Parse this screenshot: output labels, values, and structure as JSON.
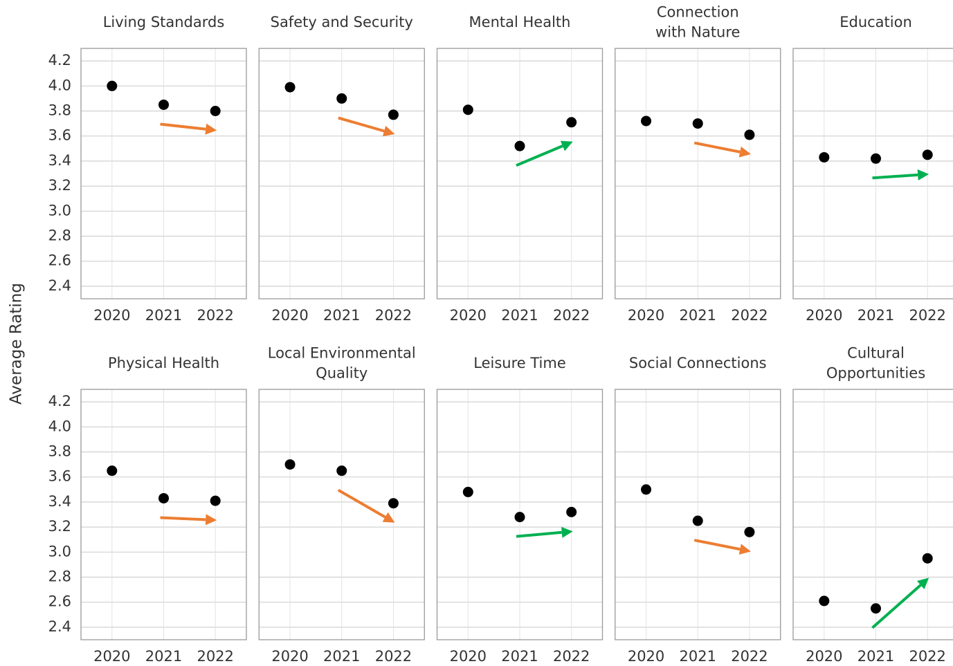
{
  "ylabel": "Average Rating",
  "chart_data": [
    {
      "type": "scatter",
      "title": [
        "Living Standards"
      ],
      "x": [
        2020,
        2021,
        2022
      ],
      "values": [
        4.0,
        3.85,
        3.8
      ],
      "color": "#000000",
      "arrow_color": "#ed7d31",
      "xlim": [
        2019.4,
        2022.6
      ],
      "xticks": [
        2020,
        2021,
        2022
      ],
      "ylim": [
        2.3,
        4.3
      ],
      "yticks": [
        {
          "value": 2.4,
          "label": "2.4"
        },
        {
          "value": 2.6,
          "label": "2.6"
        },
        {
          "value": 2.8,
          "label": "2.8"
        },
        {
          "value": 3.0,
          "label": "3.0"
        },
        {
          "value": 3.2,
          "label": "3.2"
        },
        {
          "value": 3.4,
          "label": "3.4"
        },
        {
          "value": 3.6,
          "label": "3.6"
        },
        {
          "value": 3.8,
          "label": "3.8"
        },
        {
          "value": 4.0,
          "label": "4.0"
        },
        {
          "value": 4.2,
          "label": "4.2"
        }
      ],
      "grid": true
    },
    {
      "type": "scatter",
      "title": [
        "Safety and Security"
      ],
      "x": [
        2020,
        2021,
        2022
      ],
      "values": [
        3.99,
        3.9,
        3.77
      ],
      "color": "#000000",
      "arrow_color": "#ed7d31",
      "xlim": [
        2019.4,
        2022.6
      ],
      "xticks": [
        2020,
        2021,
        2022
      ],
      "ylim": [
        2.3,
        4.3
      ],
      "yticks": [
        2.4,
        2.6,
        2.8,
        3.2,
        3.4,
        3.6,
        3.8,
        4.2
      ],
      "grid": true
    },
    {
      "type": "scatter",
      "title": [
        "Mental Health"
      ],
      "x": [
        2020,
        2021,
        2022
      ],
      "values": [
        3.81,
        3.52,
        3.71
      ],
      "color": "#000000",
      "arrow_color": "#00b050",
      "xlim": [
        2019.4,
        2022.6
      ],
      "xticks": [
        2020,
        2021,
        2022
      ],
      "ylim": [
        2.3,
        4.3
      ],
      "yticks": [
        2.4,
        2.6,
        2.8,
        3.2,
        3.4,
        3.6,
        3.8,
        4.2
      ],
      "grid": true
    },
    {
      "type": "scatter",
      "title": [
        "Connection",
        "with Nature"
      ],
      "x": [
        2020,
        2021,
        2022
      ],
      "values": [
        3.72,
        3.7,
        3.61
      ],
      "color": "#000000",
      "arrow_color": "#ed7d31",
      "xlim": [
        2019.4,
        2022.6
      ],
      "xticks": [
        2020,
        2021,
        2022
      ],
      "ylim": [
        2.3,
        4.3
      ],
      "yticks": [
        2.4,
        2.6,
        2.8,
        3.2,
        3.4,
        3.6,
        3.8,
        4.2
      ],
      "grid": true
    },
    {
      "type": "scatter",
      "title": [
        "Education"
      ],
      "x": [
        2020,
        2021,
        2022
      ],
      "values": [
        3.43,
        3.42,
        3.45
      ],
      "color": "#000000",
      "arrow_color": "#00b050",
      "xlim": [
        2019.4,
        2022.6
      ],
      "xticks": [
        2020,
        2021,
        2022
      ],
      "ylim": [
        2.3,
        4.3
      ],
      "yticks": [
        2.4,
        2.6,
        2.8,
        3.2,
        3.4,
        3.6,
        3.8,
        4.2
      ],
      "grid": true
    },
    {
      "type": "scatter",
      "title": [
        "Physical Health"
      ],
      "x": [
        2020,
        2021,
        2022
      ],
      "values": [
        3.65,
        3.43,
        3.41
      ],
      "color": "#000000",
      "arrow_color": "#ed7d31",
      "xlim": [
        2019.4,
        2022.6
      ],
      "xticks": [
        2020,
        2021,
        2022
      ],
      "ylim": [
        2.3,
        4.3
      ],
      "yticks": [
        {
          "value": 2.4,
          "label": "2.4"
        },
        {
          "value": 2.6,
          "label": "2.6"
        },
        {
          "value": 2.8,
          "label": "2.8"
        },
        {
          "value": 3.0,
          "label": "3.0"
        },
        {
          "value": 3.2,
          "label": "3.2"
        },
        {
          "value": 3.4,
          "label": "3.4"
        },
        {
          "value": 3.6,
          "label": "3.6"
        },
        {
          "value": 3.8,
          "label": "3.8"
        },
        {
          "value": 4.0,
          "label": "4.0"
        },
        {
          "value": 4.2,
          "label": "4.2"
        }
      ],
      "grid": true
    },
    {
      "type": "scatter",
      "title": [
        "Local Environmental",
        "Quality"
      ],
      "x": [
        2020,
        2021,
        2022
      ],
      "values": [
        3.7,
        3.65,
        3.39
      ],
      "color": "#000000",
      "arrow_color": "#ed7d31",
      "xlim": [
        2019.4,
        2022.6
      ],
      "xticks": [
        2020,
        2021,
        2022
      ],
      "ylim": [
        2.3,
        4.3
      ],
      "yticks": [
        2.4,
        2.6,
        2.8,
        3.2,
        3.4,
        3.6,
        3.8,
        4.2
      ],
      "grid": true
    },
    {
      "type": "scatter",
      "title": [
        "Leisure Time"
      ],
      "x": [
        2020,
        2021,
        2022
      ],
      "values": [
        3.48,
        3.28,
        3.32
      ],
      "color": "#000000",
      "arrow_color": "#00b050",
      "xlim": [
        2019.4,
        2022.6
      ],
      "xticks": [
        2020,
        2021,
        2022
      ],
      "ylim": [
        2.3,
        4.3
      ],
      "yticks": [
        2.4,
        2.6,
        2.8,
        3.2,
        3.4,
        3.6,
        3.8,
        4.2
      ],
      "grid": true
    },
    {
      "type": "scatter",
      "title": [
        "Social Connections"
      ],
      "x": [
        2020,
        2021,
        2022
      ],
      "values": [
        3.5,
        3.25,
        3.16
      ],
      "color": "#000000",
      "arrow_color": "#ed7d31",
      "xlim": [
        2019.4,
        2022.6
      ],
      "xticks": [
        2020,
        2021,
        2022
      ],
      "ylim": [
        2.3,
        4.3
      ],
      "yticks": [
        2.4,
        2.6,
        2.8,
        3.2,
        3.4,
        3.6,
        3.8,
        4.2
      ],
      "grid": true
    },
    {
      "type": "scatter",
      "title": [
        "Cultural",
        "Opportunities"
      ],
      "x": [
        2020,
        2021,
        2022
      ],
      "values": [
        2.61,
        2.55,
        2.95
      ],
      "color": "#000000",
      "arrow_color": "#00b050",
      "xlim": [
        2019.4,
        2022.6
      ],
      "xticks": [
        2020,
        2021,
        2022
      ],
      "ylim": [
        2.3,
        4.3
      ],
      "yticks": [
        2.4,
        2.6,
        2.8,
        3.2,
        3.4,
        3.6,
        3.8,
        4.2
      ],
      "grid": true
    }
  ]
}
